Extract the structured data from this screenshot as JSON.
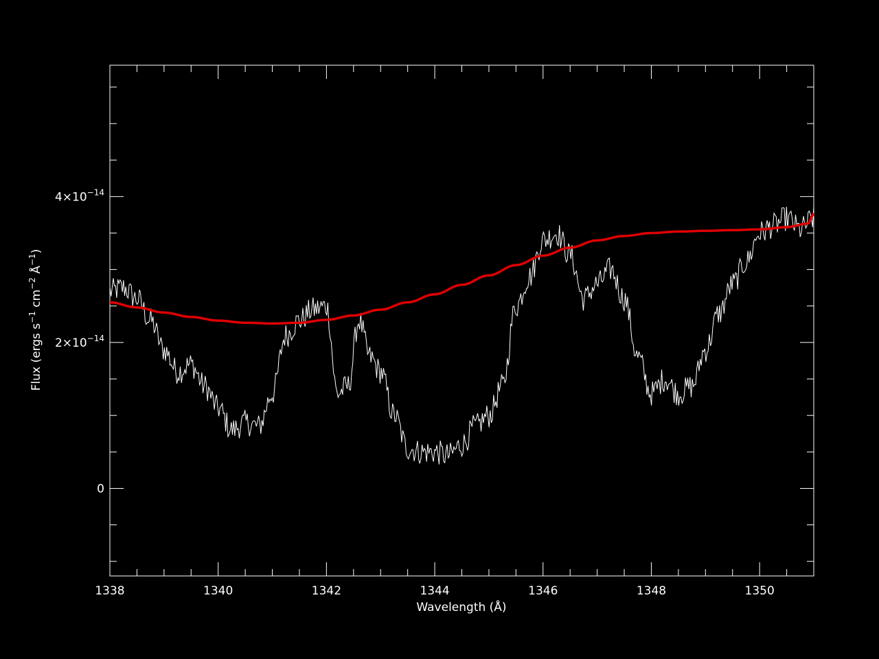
{
  "chart_data": {
    "type": "line",
    "title": "",
    "xlabel": "Wavelength (Å)",
    "ylabel": {
      "base": "Flux (ergs s",
      "sup1": "−1",
      "mid1": " cm",
      "sup2": "−2",
      "mid2": " Å",
      "sup3": "−1",
      "end": ")"
    },
    "xlim": [
      1338,
      1351
    ],
    "ylim": [
      -1.2e-14,
      5.8e-14
    ],
    "x_ticks": [
      {
        "value": 1338,
        "label": "1338"
      },
      {
        "value": 1340,
        "label": "1340"
      },
      {
        "value": 1342,
        "label": "1342"
      },
      {
        "value": 1344,
        "label": "1344"
      },
      {
        "value": 1346,
        "label": "1346"
      },
      {
        "value": 1348,
        "label": "1348"
      },
      {
        "value": 1350,
        "label": "1350"
      }
    ],
    "y_ticks": [
      {
        "value": 0,
        "label": "0",
        "exp": ""
      },
      {
        "value": 2e-14,
        "label": "2×10",
        "exp": "−14"
      },
      {
        "value": 4e-14,
        "label": "4×10",
        "exp": "−14"
      }
    ],
    "series": [
      {
        "color": "#ffffff",
        "x": [
          1338.0,
          1338.25,
          1338.5,
          1338.75,
          1339.0,
          1339.25,
          1339.5,
          1339.75,
          1340.0,
          1340.25,
          1340.5,
          1340.75,
          1341.0,
          1341.25,
          1341.5,
          1341.75,
          1342.0,
          1342.2,
          1342.4,
          1342.6,
          1342.8,
          1343.0,
          1343.25,
          1343.5,
          1343.75,
          1344.0,
          1344.25,
          1344.5,
          1344.75,
          1345.0,
          1345.25,
          1345.5,
          1345.75,
          1346.0,
          1346.25,
          1346.5,
          1346.75,
          1347.0,
          1347.25,
          1347.5,
          1347.75,
          1348.0,
          1348.25,
          1348.5,
          1348.75,
          1349.0,
          1349.25,
          1349.5,
          1349.75,
          1350.0,
          1350.25,
          1350.5,
          1350.75,
          1351.0
        ],
        "y": [
          2.7e-14,
          2.75e-14,
          2.6e-14,
          2.3e-14,
          1.9e-14,
          1.6e-14,
          1.7e-14,
          1.4e-14,
          1.1e-14,
          8e-15,
          9e-15,
          8.5e-15,
          1.3e-14,
          2.1e-14,
          2.3e-14,
          2.45e-14,
          2.5e-14,
          1.3e-14,
          1.4e-14,
          2.3e-14,
          1.8e-14,
          1.6e-14,
          1e-14,
          5.5e-15,
          5e-15,
          5e-15,
          4.5e-15,
          6e-15,
          8.5e-15,
          1e-14,
          1.4e-14,
          2.5e-14,
          2.9e-14,
          3.4e-14,
          3.5e-14,
          3.2e-14,
          2.6e-14,
          2.8e-14,
          3e-14,
          2.6e-14,
          1.8e-14,
          1.3e-14,
          1.5e-14,
          1.3e-14,
          1.4e-14,
          1.9e-14,
          2.4e-14,
          2.8e-14,
          3.1e-14,
          3.5e-14,
          3.6e-14,
          3.7e-14,
          3.55e-14,
          3.7e-14
        ]
      },
      {
        "color": "#e00000",
        "x": [
          1338.0,
          1338.5,
          1339.0,
          1339.5,
          1340.0,
          1340.5,
          1341.0,
          1341.5,
          1342.0,
          1342.5,
          1343.0,
          1343.5,
          1344.0,
          1344.5,
          1345.0,
          1345.5,
          1346.0,
          1346.5,
          1347.0,
          1347.5,
          1348.0,
          1348.5,
          1349.0,
          1349.5,
          1350.0,
          1350.5,
          1350.9,
          1351.0
        ],
        "y": [
          2.55e-14,
          2.48e-14,
          2.41e-14,
          2.35e-14,
          2.3e-14,
          2.27e-14,
          2.26e-14,
          2.27e-14,
          2.31e-14,
          2.37e-14,
          2.45e-14,
          2.55e-14,
          2.66e-14,
          2.79e-14,
          2.92e-14,
          3.06e-14,
          3.19e-14,
          3.3e-14,
          3.4e-14,
          3.46e-14,
          3.5e-14,
          3.52e-14,
          3.53e-14,
          3.54e-14,
          3.55e-14,
          3.58e-14,
          3.63e-14,
          3.77e-14
        ]
      }
    ]
  }
}
